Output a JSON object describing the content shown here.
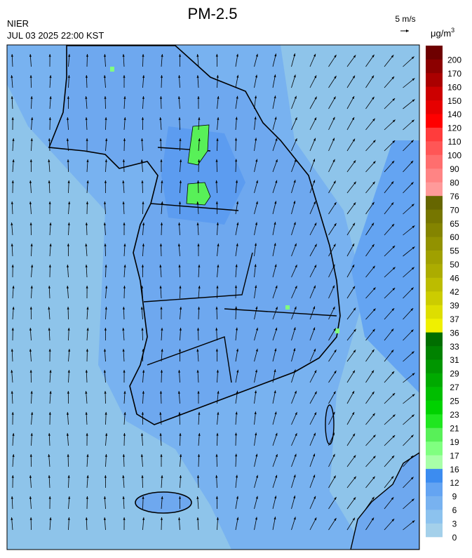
{
  "header": {
    "title": "PM-2.5",
    "source": "NIER",
    "timestamp": "JUL 03 2025 22:00 KST",
    "wind_reference": "5 m/s",
    "unit": "μg/m",
    "unit_exponent": "3"
  },
  "colorbar": {
    "ticks": [
      0,
      3,
      6,
      9,
      12,
      16,
      17,
      19,
      21,
      23,
      25,
      27,
      29,
      31,
      33,
      36,
      37,
      39,
      42,
      46,
      50,
      55,
      60,
      65,
      70,
      76,
      80,
      90,
      100,
      110,
      120,
      140,
      150,
      160,
      170,
      200
    ],
    "colors": [
      "#a4d0ea",
      "#8cc2ee",
      "#78b2f0",
      "#64a4f2",
      "#3c8cf0",
      "#a8ffa8",
      "#80ff80",
      "#58f058",
      "#20e620",
      "#00d200",
      "#00be00",
      "#00aa00",
      "#009600",
      "#008200",
      "#006e00",
      "#f0f000",
      "#dede00",
      "#cccc00",
      "#bcbc00",
      "#acac00",
      "#a0a000",
      "#929200",
      "#848400",
      "#767600",
      "#666600",
      "#ff9a9a",
      "#ff8484",
      "#ff6e6e",
      "#ff5656",
      "#ff3c3c",
      "#ff0000",
      "#e60000",
      "#cc0000",
      "#aa0000",
      "#8c0000",
      "#6e0000"
    ]
  }
}
